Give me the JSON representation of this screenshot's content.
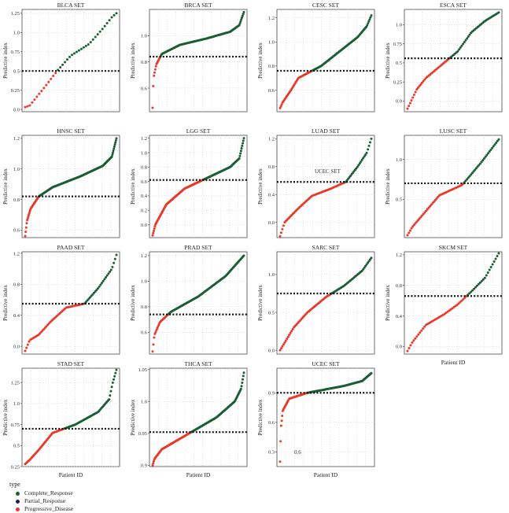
{
  "colors": {
    "Complete_Response": "#1b5e34",
    "Partial_Response": "#1a1f4e",
    "Progressive_Disease": "#e8392a",
    "grid": "#c8c8c8",
    "threshold": "#111111"
  },
  "labels": {
    "ylabel": "Predictive index",
    "xlabel": "Patient ID"
  },
  "legend": {
    "title": "type",
    "items": [
      {
        "label": "Complete_Response",
        "key": "Complete_Response"
      },
      {
        "label": "Partial_Response",
        "key": "Partial_Response"
      },
      {
        "label": "Progressive_Disease",
        "key": "Progressive_Disease"
      }
    ]
  },
  "chart_data": [
    {
      "type": "scatter",
      "title": "BLCA SET",
      "n": 40,
      "ylim": [
        -0.03,
        1.3
      ],
      "yticks": [
        0.0,
        0.25,
        0.5,
        0.75,
        1.0,
        1.25
      ],
      "threshold": 0.5,
      "curve": [
        [
          0,
          0.03
        ],
        [
          0.05,
          0.05
        ],
        [
          0.22,
          0.3
        ],
        [
          0.35,
          0.5
        ],
        [
          0.5,
          0.7
        ],
        [
          0.7,
          0.85
        ],
        [
          0.85,
          1.05
        ],
        [
          0.95,
          1.2
        ],
        [
          1,
          1.25
        ]
      ],
      "show_xlabel": false
    },
    {
      "type": "scatter",
      "title": "BRCA SET",
      "n": 140,
      "ylim": [
        0.42,
        1.2
      ],
      "yticks": [
        0.6,
        0.8,
        1.0
      ],
      "threshold": 0.84,
      "curve": [
        [
          0,
          0.45
        ],
        [
          0.01,
          0.68
        ],
        [
          0.04,
          0.78
        ],
        [
          0.1,
          0.86
        ],
        [
          0.3,
          0.93
        ],
        [
          0.6,
          0.98
        ],
        [
          0.85,
          1.03
        ],
        [
          0.95,
          1.08
        ],
        [
          1,
          1.18
        ]
      ],
      "show_xlabel": false
    },
    {
      "type": "scatter",
      "title": "CESC SET",
      "n": 110,
      "ylim": [
        0.42,
        1.27
      ],
      "yticks": [
        0.6,
        0.8,
        1.0,
        1.2
      ],
      "threshold": 0.76,
      "curve": [
        [
          0,
          0.45
        ],
        [
          0.03,
          0.5
        ],
        [
          0.12,
          0.6
        ],
        [
          0.2,
          0.7
        ],
        [
          0.45,
          0.8
        ],
        [
          0.65,
          0.92
        ],
        [
          0.85,
          1.04
        ],
        [
          0.95,
          1.13
        ],
        [
          1,
          1.22
        ]
      ],
      "show_xlabel": false
    },
    {
      "type": "scatter",
      "title": "ESCA SET",
      "n": 70,
      "ylim": [
        -0.14,
        1.2
      ],
      "yticks": [
        0.0,
        0.25,
        0.5,
        0.75,
        1.0
      ],
      "threshold": 0.56,
      "curve": [
        [
          0,
          -0.1
        ],
        [
          0.04,
          0.0
        ],
        [
          0.1,
          0.15
        ],
        [
          0.2,
          0.3
        ],
        [
          0.4,
          0.5
        ],
        [
          0.55,
          0.65
        ],
        [
          0.7,
          0.9
        ],
        [
          0.85,
          1.05
        ],
        [
          1,
          1.16
        ]
      ],
      "show_xlabel": false
    },
    {
      "type": "scatter",
      "title": "HNSC SET",
      "n": 180,
      "ylim": [
        0.55,
        1.22
      ],
      "yticks": [
        0.6,
        0.8,
        1.0,
        1.2
      ],
      "threshold": 0.82,
      "curve": [
        [
          0,
          0.56
        ],
        [
          0.02,
          0.66
        ],
        [
          0.06,
          0.74
        ],
        [
          0.15,
          0.82
        ],
        [
          0.3,
          0.88
        ],
        [
          0.6,
          0.95
        ],
        [
          0.85,
          1.02
        ],
        [
          0.95,
          1.08
        ],
        [
          1,
          1.2
        ]
      ],
      "show_xlabel": false
    },
    {
      "type": "scatter",
      "title": "LGG SET",
      "n": 160,
      "ylim": [
        -0.18,
        1.24
      ],
      "yticks": [
        0.0,
        0.2,
        0.4,
        0.6,
        0.8,
        1.0,
        1.2
      ],
      "threshold": 0.62,
      "curve": [
        [
          0,
          -0.15
        ],
        [
          0.03,
          0.0
        ],
        [
          0.15,
          0.28
        ],
        [
          0.35,
          0.5
        ],
        [
          0.6,
          0.65
        ],
        [
          0.85,
          0.8
        ],
        [
          0.95,
          0.92
        ],
        [
          1,
          1.2
        ]
      ],
      "show_xlabel": false
    },
    {
      "type": "scatter",
      "title": "LUAD SET",
      "n": 80,
      "ylim": [
        -0.22,
        1.25
      ],
      "yticks": [
        0.0,
        0.4,
        0.8,
        1.2
      ],
      "threshold": 0.58,
      "curve": [
        [
          0,
          -0.2
        ],
        [
          0.05,
          0.0
        ],
        [
          0.2,
          0.2
        ],
        [
          0.35,
          0.38
        ],
        [
          0.55,
          0.48
        ],
        [
          0.72,
          0.58
        ],
        [
          0.85,
          0.8
        ],
        [
          0.95,
          1.0
        ],
        [
          1,
          1.2
        ]
      ],
      "show_xlabel": false,
      "annotation": "UCEC SET"
    },
    {
      "type": "scatter",
      "title": "LUSC SET",
      "n": 70,
      "ylim": [
        0.02,
        1.3
      ],
      "yticks": [
        0.5,
        1.0
      ],
      "threshold": 0.7,
      "curve": [
        [
          0,
          0.05
        ],
        [
          0.05,
          0.15
        ],
        [
          0.2,
          0.35
        ],
        [
          0.35,
          0.55
        ],
        [
          0.6,
          0.68
        ],
        [
          0.8,
          0.95
        ],
        [
          1,
          1.25
        ]
      ],
      "show_xlabel": false
    },
    {
      "type": "scatter",
      "title": "PAAD SET",
      "n": 70,
      "ylim": [
        -0.1,
        1.22
      ],
      "yticks": [
        0.0,
        0.4,
        0.8,
        1.2
      ],
      "threshold": 0.55,
      "curve": [
        [
          0,
          -0.06
        ],
        [
          0.05,
          0.08
        ],
        [
          0.15,
          0.15
        ],
        [
          0.28,
          0.32
        ],
        [
          0.45,
          0.5
        ],
        [
          0.65,
          0.55
        ],
        [
          0.8,
          0.75
        ],
        [
          0.95,
          1.0
        ],
        [
          1,
          1.18
        ]
      ],
      "show_xlabel": false
    },
    {
      "type": "scatter",
      "title": "PRAD SET",
      "n": 120,
      "ylim": [
        0.43,
        1.23
      ],
      "yticks": [
        0.6,
        0.8,
        1.0,
        1.2
      ],
      "threshold": 0.74,
      "curve": [
        [
          0,
          0.45
        ],
        [
          0.02,
          0.58
        ],
        [
          0.08,
          0.68
        ],
        [
          0.2,
          0.76
        ],
        [
          0.5,
          0.88
        ],
        [
          0.8,
          1.04
        ],
        [
          1,
          1.2
        ]
      ],
      "show_xlabel": false
    },
    {
      "type": "scatter",
      "title": "SARC SET",
      "n": 80,
      "ylim": [
        -0.05,
        1.3
      ],
      "yticks": [
        0.0,
        0.5,
        1.0
      ],
      "threshold": 0.75,
      "curve": [
        [
          0,
          0.0
        ],
        [
          0.05,
          0.1
        ],
        [
          0.15,
          0.3
        ],
        [
          0.3,
          0.5
        ],
        [
          0.5,
          0.7
        ],
        [
          0.7,
          0.85
        ],
        [
          0.9,
          1.05
        ],
        [
          1,
          1.22
        ]
      ],
      "show_xlabel": false
    },
    {
      "type": "scatter",
      "title": "SKCM SET",
      "n": 60,
      "ylim": [
        -0.1,
        1.24
      ],
      "yticks": [
        0.0,
        0.4,
        0.8,
        1.2
      ],
      "threshold": 0.66,
      "curve": [
        [
          0,
          -0.06
        ],
        [
          0.05,
          0.05
        ],
        [
          0.2,
          0.28
        ],
        [
          0.4,
          0.42
        ],
        [
          0.55,
          0.55
        ],
        [
          0.7,
          0.72
        ],
        [
          0.85,
          0.9
        ],
        [
          1,
          1.22
        ]
      ],
      "show_xlabel": true
    },
    {
      "type": "scatter",
      "title": "STAD SET",
      "n": 100,
      "ylim": [
        0.25,
        1.42
      ],
      "yticks": [
        0.25,
        0.5,
        0.75,
        1.0,
        1.25
      ],
      "threshold": 0.7,
      "curve": [
        [
          0,
          0.28
        ],
        [
          0.05,
          0.33
        ],
        [
          0.15,
          0.45
        ],
        [
          0.3,
          0.65
        ],
        [
          0.55,
          0.75
        ],
        [
          0.8,
          0.9
        ],
        [
          0.92,
          1.05
        ],
        [
          0.96,
          1.25
        ],
        [
          1,
          1.4
        ]
      ],
      "show_xlabel": true
    },
    {
      "type": "scatter",
      "title": "THCA SET",
      "n": 160,
      "ylim": [
        0.898,
        1.052
      ],
      "yticks": [
        0.9,
        0.95,
        1.0,
        1.05
      ],
      "threshold": 0.952,
      "curve": [
        [
          0,
          0.9
        ],
        [
          0.02,
          0.91
        ],
        [
          0.1,
          0.925
        ],
        [
          0.4,
          0.95
        ],
        [
          0.7,
          0.975
        ],
        [
          0.9,
          1.0
        ],
        [
          0.97,
          1.02
        ],
        [
          1,
          1.045
        ]
      ],
      "show_xlabel": true
    },
    {
      "type": "scatter",
      "title": "UCEC SET",
      "n": 170,
      "ylim": [
        0.15,
        1.15
      ],
      "yticks": [
        0.3,
        0.6,
        0.9
      ],
      "threshold": 0.9,
      "curve": [
        [
          0,
          0.2
        ],
        [
          0.01,
          0.55
        ],
        [
          0.03,
          0.72
        ],
        [
          0.1,
          0.84
        ],
        [
          0.3,
          0.9
        ],
        [
          0.7,
          0.97
        ],
        [
          0.9,
          1.02
        ],
        [
          1,
          1.1
        ]
      ],
      "show_xlabel": true,
      "annotation": "0.6"
    }
  ]
}
